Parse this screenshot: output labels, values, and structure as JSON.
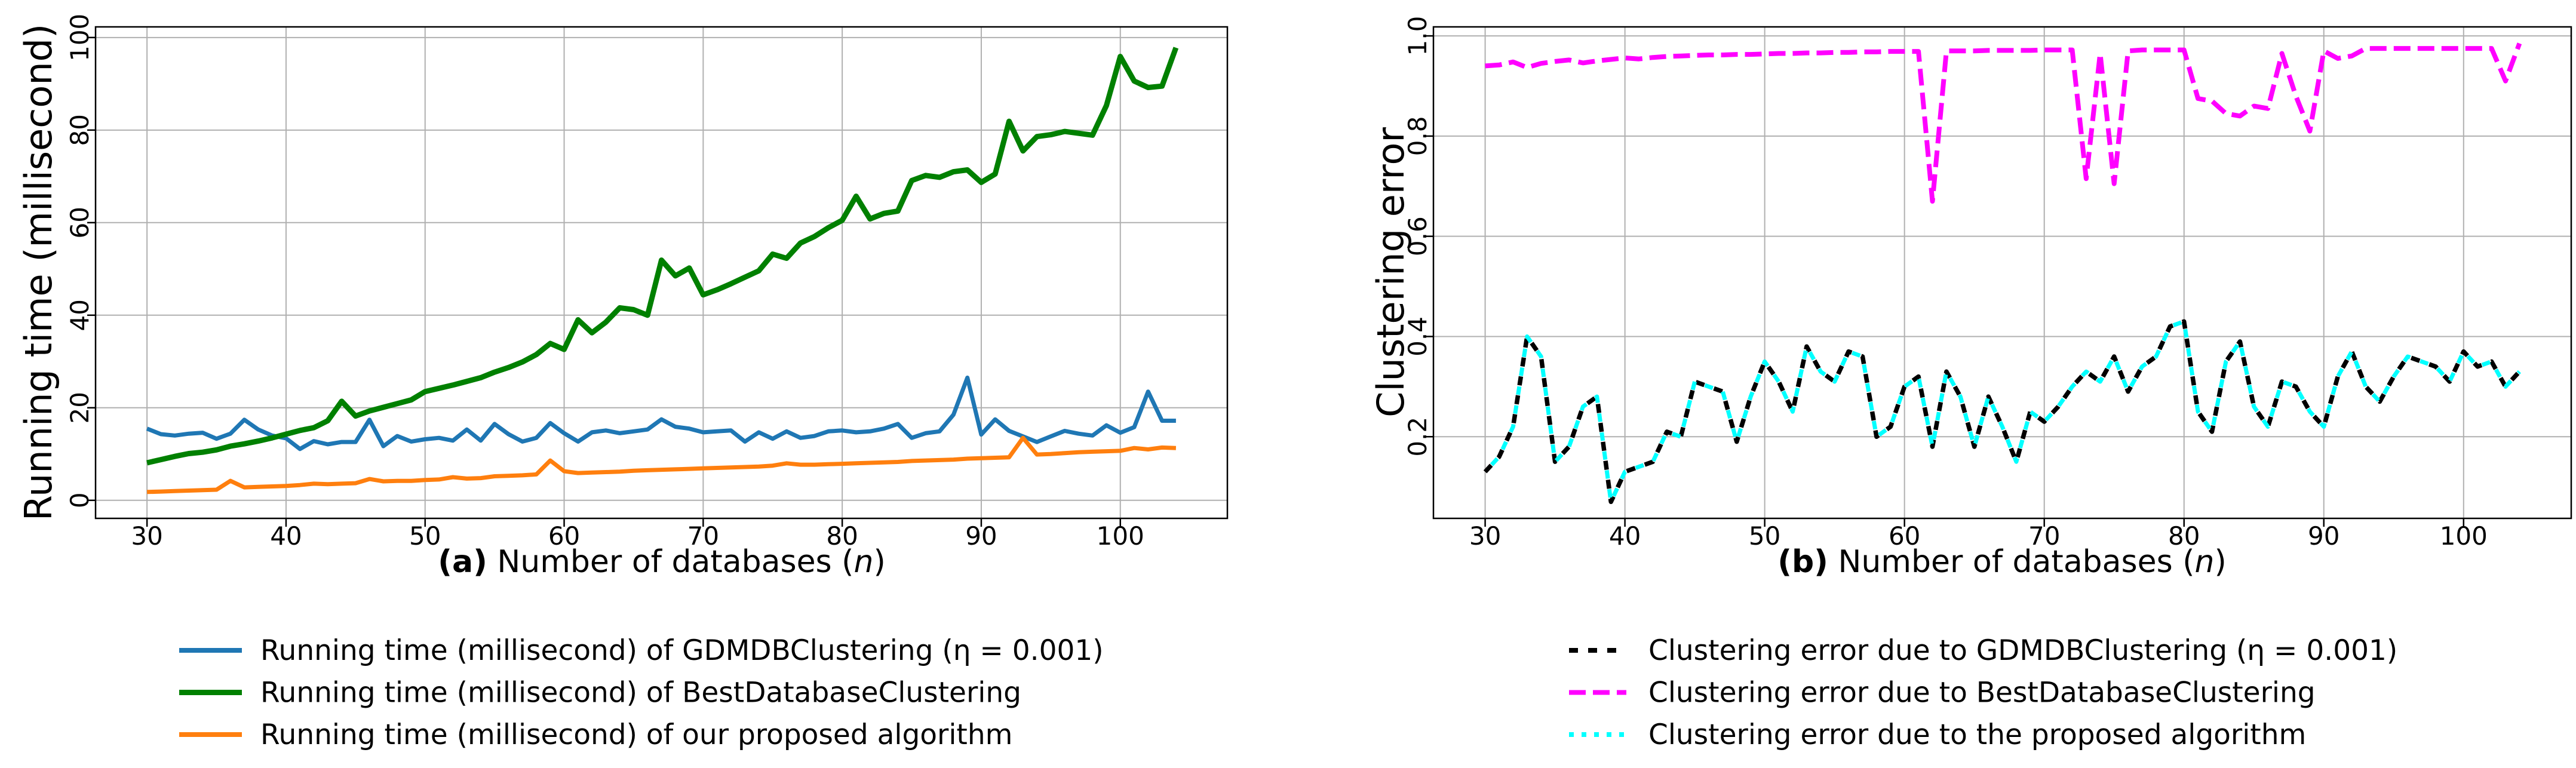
{
  "figure": {
    "background": "#ffffff",
    "grid_color": "#b0b0b0",
    "spine_color": "#000000",
    "text_color": "#000000"
  },
  "chart_data": [
    {
      "id": "a",
      "type": "line",
      "title": "",
      "caption": {
        "tag": "(a)",
        "text": " Number of databases (",
        "var": "n",
        "suffix": ")"
      },
      "ylabel": "Running time (millisecond)",
      "xlim": [
        26.3,
        107.7
      ],
      "ylim": [
        -3.9,
        102.3
      ],
      "grid": true,
      "legend_position": "below",
      "xticks": [
        30,
        40,
        50,
        60,
        70,
        80,
        90,
        100
      ],
      "xtick_labels": [
        "30",
        "40",
        "50",
        "60",
        "70",
        "80",
        "90",
        "100"
      ],
      "yticks": [
        0,
        20,
        40,
        60,
        80,
        100
      ],
      "ytick_labels": [
        "0",
        "20",
        "40",
        "60",
        "80",
        "100"
      ],
      "x": [
        30,
        31,
        32,
        33,
        34,
        35,
        36,
        37,
        38,
        39,
        40,
        41,
        42,
        43,
        44,
        45,
        46,
        47,
        48,
        49,
        50,
        51,
        52,
        53,
        54,
        55,
        56,
        57,
        58,
        59,
        60,
        61,
        62,
        63,
        64,
        65,
        66,
        67,
        68,
        69,
        70,
        71,
        72,
        73,
        74,
        75,
        76,
        77,
        78,
        79,
        80,
        81,
        82,
        83,
        84,
        85,
        86,
        87,
        88,
        89,
        90,
        91,
        92,
        93,
        94,
        95,
        96,
        97,
        98,
        99,
        100,
        101,
        102,
        103,
        104
      ],
      "series": [
        {
          "key": "gdmdb",
          "name": "Running time (millisecond) of GDMDBClustering (η = 0.001)",
          "color": "#1f77b4",
          "linestyle": "solid",
          "linewidth": 7,
          "values": [
            15.5,
            14.3,
            14.0,
            14.4,
            14.6,
            13.3,
            14.4,
            17.4,
            15.3,
            14.0,
            13.4,
            11.1,
            12.8,
            12.1,
            12.6,
            12.6,
            17.4,
            11.7,
            13.9,
            12.7,
            13.2,
            13.5,
            12.9,
            15.3,
            12.9,
            16.5,
            14.3,
            12.7,
            13.5,
            16.7,
            14.5,
            12.7,
            14.7,
            15.1,
            14.5,
            14.9,
            15.3,
            17.5,
            15.9,
            15.5,
            14.7,
            14.9,
            15.1,
            12.7,
            14.7,
            13.3,
            14.9,
            13.5,
            13.9,
            14.9,
            15.1,
            14.7,
            14.9,
            15.5,
            16.5,
            13.5,
            14.5,
            14.9,
            18.5,
            26.5,
            14.2,
            17.5,
            15.0,
            13.8,
            12.6,
            13.8,
            15.0,
            14.4,
            14.0,
            16.2,
            14.6,
            15.8,
            23.5,
            17.2,
            17.2
          ]
        },
        {
          "key": "bestdb",
          "name": "Running time (millisecond) of BestDatabaseClustering",
          "color": "#008000",
          "linestyle": "solid",
          "linewidth": 9,
          "values": [
            8.1,
            8.8,
            9.5,
            10.1,
            10.4,
            10.9,
            11.7,
            12.2,
            12.8,
            13.5,
            14.3,
            15.1,
            15.7,
            17.2,
            21.4,
            18.2,
            19.3,
            20.1,
            20.9,
            21.7,
            23.5,
            24.2,
            24.9,
            25.7,
            26.5,
            27.7,
            28.7,
            29.9,
            31.5,
            33.9,
            32.6,
            39.0,
            36.2,
            38.5,
            41.6,
            41.2,
            40.0,
            51.9,
            48.5,
            50.2,
            44.4,
            45.5,
            46.8,
            48.2,
            49.6,
            53.2,
            52.3,
            55.6,
            57.0,
            58.9,
            60.5,
            65.7,
            60.8,
            62.0,
            62.5,
            69.1,
            70.2,
            69.8,
            71.0,
            71.4,
            68.7,
            70.5,
            81.9,
            75.5,
            78.6,
            79.0,
            79.7,
            79.3,
            78.9,
            85.3,
            95.9,
            90.6,
            89.2,
            89.5,
            97.8
          ]
        },
        {
          "key": "proposed",
          "name": "Running time (millisecond) of our proposed algorithm",
          "color": "#ff7f0e",
          "linestyle": "solid",
          "linewidth": 7,
          "values": [
            1.8,
            1.9,
            2.0,
            2.1,
            2.2,
            2.3,
            4.2,
            2.8,
            2.9,
            3.0,
            3.1,
            3.3,
            3.6,
            3.5,
            3.6,
            3.7,
            4.6,
            4.1,
            4.2,
            4.2,
            4.4,
            4.5,
            5.0,
            4.7,
            4.8,
            5.2,
            5.3,
            5.4,
            5.6,
            8.6,
            6.3,
            5.9,
            6.0,
            6.1,
            6.2,
            6.4,
            6.5,
            6.6,
            6.7,
            6.8,
            6.9,
            7.0,
            7.1,
            7.2,
            7.3,
            7.5,
            8.0,
            7.7,
            7.7,
            7.8,
            7.9,
            8.0,
            8.1,
            8.2,
            8.3,
            8.5,
            8.6,
            8.7,
            8.8,
            9.0,
            9.1,
            9.2,
            9.3,
            13.5,
            9.9,
            10.0,
            10.2,
            10.4,
            10.5,
            10.6,
            10.7,
            11.3,
            11.0,
            11.4,
            11.3
          ]
        }
      ]
    },
    {
      "id": "b",
      "type": "line",
      "title": "",
      "caption": {
        "tag": "(b)",
        "text": " Number of databases (",
        "var": "n",
        "suffix": ")"
      },
      "ylabel": "Clustering error",
      "xlim": [
        26.3,
        107.7
      ],
      "ylim": [
        0.037,
        1.018
      ],
      "grid": true,
      "legend_position": "below",
      "xticks": [
        30,
        40,
        50,
        60,
        70,
        80,
        90,
        100
      ],
      "xtick_labels": [
        "30",
        "40",
        "50",
        "60",
        "70",
        "80",
        "90",
        "100"
      ],
      "yticks": [
        0.2,
        0.4,
        0.6,
        0.8,
        1.0
      ],
      "ytick_labels": [
        "0.2",
        "0.4",
        "0.6",
        "0.8",
        "1.0"
      ],
      "x": [
        30,
        31,
        32,
        33,
        34,
        35,
        36,
        37,
        38,
        39,
        40,
        41,
        42,
        43,
        44,
        45,
        46,
        47,
        48,
        49,
        50,
        51,
        52,
        53,
        54,
        55,
        56,
        57,
        58,
        59,
        60,
        61,
        62,
        63,
        64,
        65,
        66,
        67,
        68,
        69,
        70,
        71,
        72,
        73,
        74,
        75,
        76,
        77,
        78,
        79,
        80,
        81,
        82,
        83,
        84,
        85,
        86,
        87,
        88,
        89,
        90,
        91,
        92,
        93,
        94,
        95,
        96,
        97,
        98,
        99,
        100,
        101,
        102,
        103,
        104
      ],
      "series": [
        {
          "key": "gdmdb",
          "name": "Clustering error due to GDMDBClustering (η = 0.001)",
          "color": "#000000",
          "linestyle": "dashed",
          "dash": "15 17",
          "linewidth": 7.5,
          "values": [
            0.13,
            0.16,
            0.22,
            0.4,
            0.36,
            0.15,
            0.18,
            0.26,
            0.28,
            0.07,
            0.13,
            0.14,
            0.15,
            0.21,
            0.2,
            0.31,
            0.3,
            0.29,
            0.19,
            0.28,
            0.35,
            0.31,
            0.25,
            0.38,
            0.33,
            0.31,
            0.37,
            0.36,
            0.2,
            0.22,
            0.3,
            0.32,
            0.18,
            0.33,
            0.28,
            0.18,
            0.28,
            0.22,
            0.15,
            0.25,
            0.23,
            0.26,
            0.3,
            0.33,
            0.31,
            0.36,
            0.29,
            0.34,
            0.36,
            0.42,
            0.43,
            0.25,
            0.21,
            0.35,
            0.39,
            0.26,
            0.22,
            0.31,
            0.3,
            0.25,
            0.22,
            0.32,
            0.37,
            0.3,
            0.27,
            0.32,
            0.36,
            0.35,
            0.34,
            0.31,
            0.37,
            0.34,
            0.35,
            0.3,
            0.33
          ]
        },
        {
          "key": "bestdb",
          "name": "Clustering error due to BestDatabaseClustering",
          "color": "#ff00ff",
          "linestyle": "dashed",
          "dash": "28 12",
          "linewidth": 8,
          "values": [
            0.94,
            0.942,
            0.948,
            0.937,
            0.945,
            0.949,
            0.952,
            0.946,
            0.95,
            0.953,
            0.956,
            0.954,
            0.957,
            0.959,
            0.96,
            0.961,
            0.962,
            0.962,
            0.963,
            0.963,
            0.964,
            0.965,
            0.965,
            0.966,
            0.966,
            0.967,
            0.967,
            0.968,
            0.968,
            0.969,
            0.969,
            0.969,
            0.67,
            0.97,
            0.97,
            0.97,
            0.971,
            0.971,
            0.971,
            0.971,
            0.972,
            0.972,
            0.972,
            0.715,
            0.965,
            0.705,
            0.97,
            0.972,
            0.972,
            0.972,
            0.972,
            0.875,
            0.87,
            0.845,
            0.84,
            0.86,
            0.855,
            0.965,
            0.88,
            0.81,
            0.97,
            0.955,
            0.96,
            0.975,
            0.975,
            0.975,
            0.975,
            0.975,
            0.975,
            0.975,
            0.975,
            0.975,
            0.975,
            0.91,
            0.985
          ]
        },
        {
          "key": "proposed",
          "name": "Clustering error due to the proposed algorithm",
          "color": "#00ffff",
          "linestyle": "dotted",
          "dash": "14 18",
          "dashoffset": -16,
          "legend_dash": "8 13",
          "linewidth": 7,
          "values": [
            0.13,
            0.16,
            0.22,
            0.4,
            0.36,
            0.15,
            0.18,
            0.26,
            0.28,
            0.07,
            0.13,
            0.14,
            0.15,
            0.21,
            0.2,
            0.31,
            0.3,
            0.29,
            0.19,
            0.28,
            0.35,
            0.31,
            0.25,
            0.38,
            0.33,
            0.31,
            0.37,
            0.36,
            0.2,
            0.22,
            0.3,
            0.32,
            0.18,
            0.33,
            0.28,
            0.18,
            0.28,
            0.22,
            0.15,
            0.25,
            0.23,
            0.26,
            0.3,
            0.33,
            0.31,
            0.36,
            0.29,
            0.34,
            0.36,
            0.42,
            0.43,
            0.25,
            0.21,
            0.35,
            0.39,
            0.26,
            0.22,
            0.31,
            0.3,
            0.25,
            0.22,
            0.32,
            0.37,
            0.3,
            0.27,
            0.32,
            0.36,
            0.35,
            0.34,
            0.31,
            0.37,
            0.34,
            0.35,
            0.3,
            0.33
          ]
        }
      ]
    }
  ]
}
